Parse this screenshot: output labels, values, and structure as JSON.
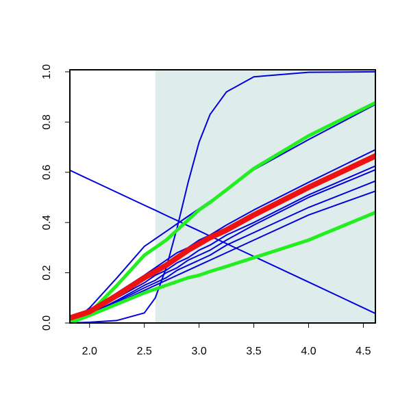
{
  "chart_data": {
    "type": "line",
    "x": [
      1.82,
      2.0,
      2.25,
      2.5,
      2.6,
      2.7,
      2.8,
      2.9,
      3.0,
      3.1,
      3.25,
      3.5,
      4.0,
      4.61
    ],
    "series": [
      {
        "color": "#0000dd",
        "width": 2,
        "values": [
          0.608,
          0.571,
          0.52,
          0.469,
          0.449,
          0.428,
          0.408,
          0.387,
          0.367,
          0.346,
          0.316,
          0.265,
          0.163,
          0.038
        ]
      },
      {
        "color": "#0000dd",
        "width": 2,
        "values": [
          0,
          0.003,
          0.01,
          0.04,
          0.1,
          0.22,
          0.38,
          0.56,
          0.72,
          0.83,
          0.92,
          0.98,
          0.998,
          1.0
        ]
      },
      {
        "color": "#0000dd",
        "width": 2,
        "values": [
          0,
          0.06,
          0.18,
          0.305,
          0.335,
          0.365,
          0.395,
          0.425,
          0.455,
          0.485,
          0.53,
          0.61,
          0.73,
          0.87
        ]
      },
      {
        "color": "#0000dd",
        "width": 2,
        "values": [
          0,
          0.05,
          0.12,
          0.19,
          0.22,
          0.25,
          0.28,
          0.3,
          0.33,
          0.35,
          0.39,
          0.45,
          0.56,
          0.69
        ]
      },
      {
        "color": "#0000dd",
        "width": 2,
        "values": [
          0,
          0.04,
          0.1,
          0.16,
          0.19,
          0.21,
          0.24,
          0.26,
          0.29,
          0.31,
          0.35,
          0.4,
          0.51,
          0.625
        ]
      },
      {
        "color": "#0000dd",
        "width": 2,
        "values": [
          0,
          0.035,
          0.09,
          0.15,
          0.17,
          0.2,
          0.22,
          0.25,
          0.27,
          0.29,
          0.33,
          0.39,
          0.5,
          0.61
        ]
      },
      {
        "color": "#0000dd",
        "width": 2,
        "values": [
          0,
          0.03,
          0.085,
          0.14,
          0.16,
          0.18,
          0.21,
          0.23,
          0.25,
          0.27,
          0.31,
          0.36,
          0.46,
          0.565
        ]
      },
      {
        "color": "#0000dd",
        "width": 2,
        "values": [
          0,
          0.03,
          0.08,
          0.13,
          0.15,
          0.17,
          0.19,
          0.21,
          0.23,
          0.25,
          0.28,
          0.33,
          0.43,
          0.525
        ]
      },
      {
        "color": "#22ee22",
        "width": 5,
        "values": [
          0,
          0.04,
          0.15,
          0.27,
          0.3,
          0.33,
          0.37,
          0.41,
          0.45,
          0.48,
          0.53,
          0.615,
          0.745,
          0.877
        ]
      },
      {
        "color": "#22ee22",
        "width": 5,
        "values": [
          0,
          0.03,
          0.075,
          0.12,
          0.135,
          0.15,
          0.165,
          0.18,
          0.19,
          0.205,
          0.225,
          0.26,
          0.33,
          0.44
        ]
      },
      {
        "color": "#ee1111",
        "width": 8,
        "values": [
          0.02,
          0.045,
          0.11,
          0.18,
          0.205,
          0.23,
          0.26,
          0.29,
          0.315,
          0.34,
          0.37,
          0.43,
          0.54,
          0.665
        ]
      }
    ],
    "shade": [
      2.6,
      4.61
    ],
    "shade_color": "#dfecec",
    "xlim": [
      1.82,
      4.61
    ],
    "ylim": [
      0,
      1.008
    ],
    "xticks": [
      {
        "value": 2,
        "label": "2.0"
      },
      2.5,
      {
        "value": 3,
        "label": "3.0"
      },
      3.5,
      {
        "value": 4,
        "label": "4.0"
      },
      4.5
    ],
    "yticks": [
      {
        "value": 0,
        "label": "0.0"
      },
      0.2,
      0.4,
      0.6,
      0.8,
      {
        "value": 1,
        "label": "1.0"
      }
    ]
  }
}
